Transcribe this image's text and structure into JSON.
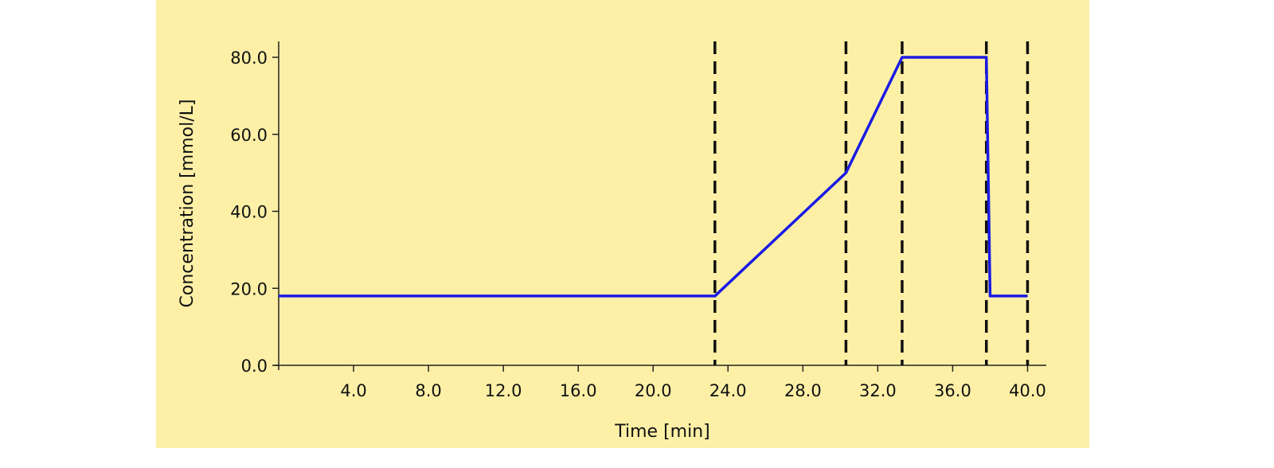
{
  "chart_data": {
    "type": "line",
    "title": "",
    "xlabel": "Time [min]",
    "ylabel": "Concentration [mmol/L]",
    "xlim": [
      0,
      41
    ],
    "ylim": [
      0,
      80
    ],
    "x_ticks": [
      4,
      8,
      12,
      16,
      20,
      24,
      28,
      32,
      36,
      40
    ],
    "x_tick_labels": [
      "4.0",
      "8.0",
      "12.0",
      "16.0",
      "20.0",
      "24.0",
      "28.0",
      "32.0",
      "36.0",
      "40.0"
    ],
    "y_ticks": [
      0,
      20,
      40,
      60,
      80
    ],
    "y_tick_labels": [
      "0.0",
      "20.0",
      "40.0",
      "60.0",
      "80.0"
    ],
    "grid": false,
    "series": [
      {
        "color": "#1a1ae6",
        "x": [
          0,
          23.3,
          30.3,
          33.3,
          37.8,
          38.0,
          40.0
        ],
        "y": [
          18,
          18,
          50,
          80,
          80,
          18,
          18
        ]
      }
    ],
    "vertical_dashed_lines": {
      "color": "#111111",
      "x": [
        23.3,
        30.3,
        33.3,
        37.8,
        40.0
      ]
    }
  }
}
